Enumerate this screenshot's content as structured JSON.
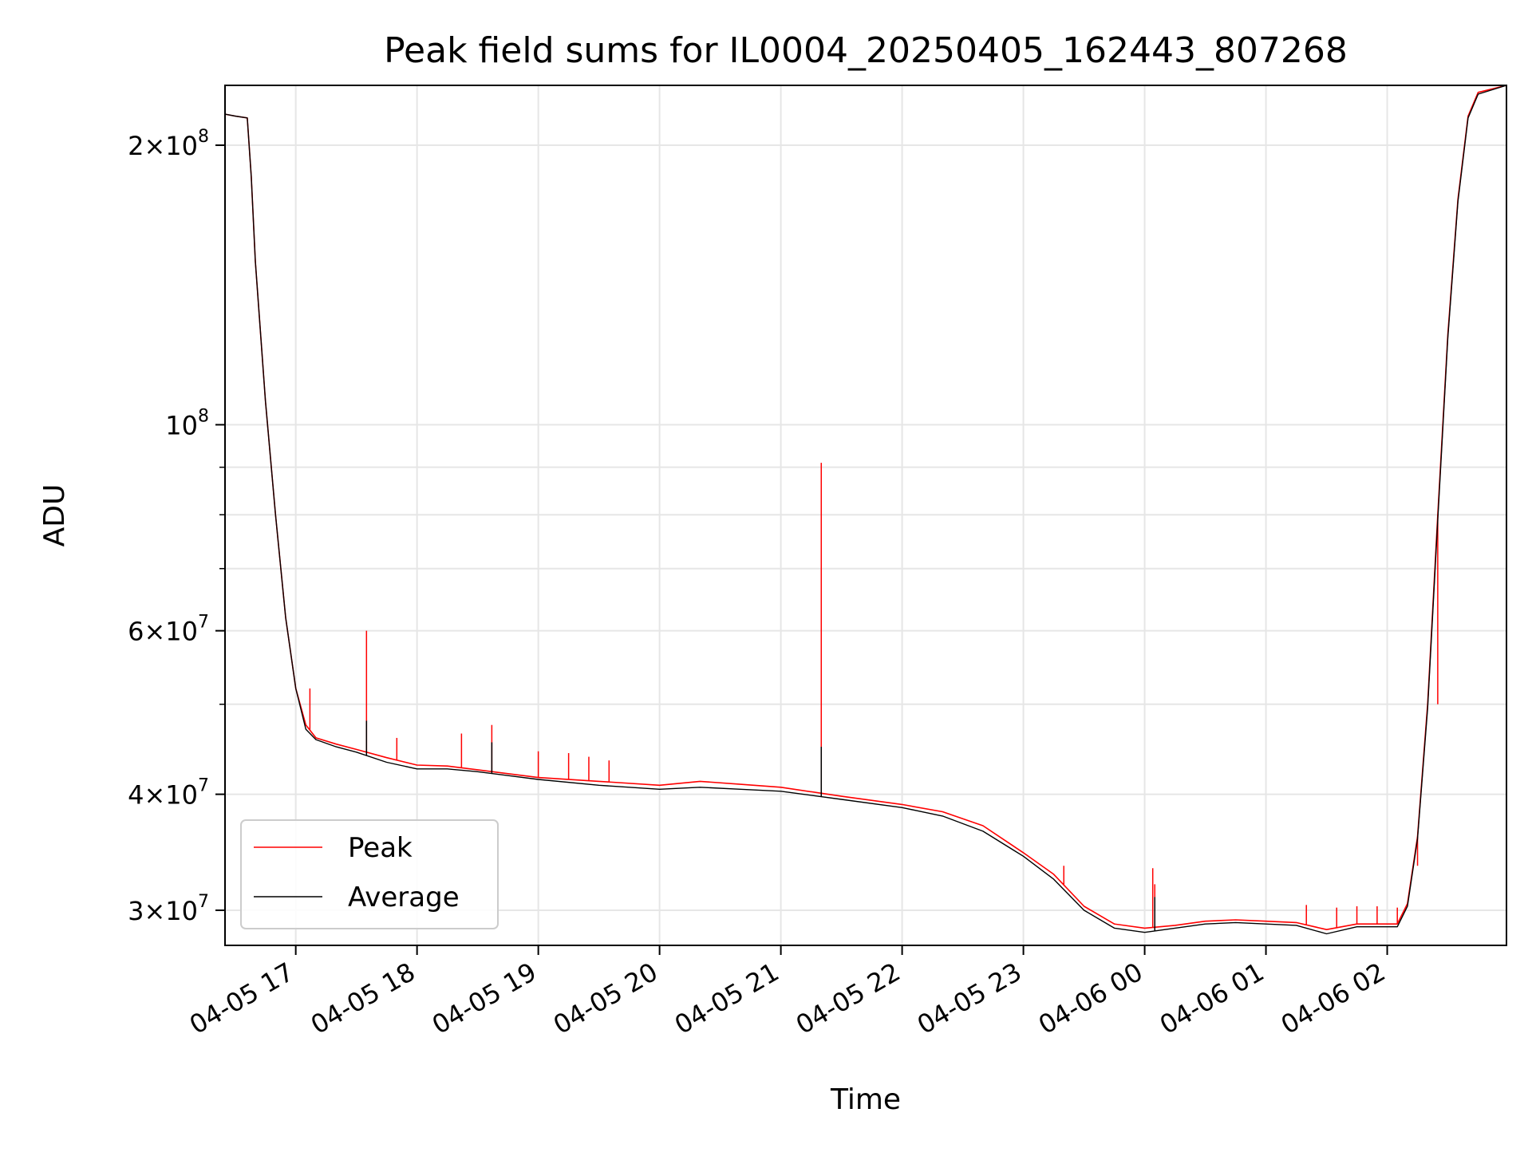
{
  "chart_data": {
    "type": "line",
    "title": "Peak field sums for IL0004_20250405_162443_807268",
    "xlabel": "Time",
    "ylabel": "ADU",
    "yscale": "log",
    "ylim": [
      27500000,
      232000000
    ],
    "xlim": [
      "04-05 16:25",
      "04-06 02:59"
    ],
    "grid": true,
    "legend_position": "lower left",
    "x_ticks": [
      "04-05 17",
      "04-05 18",
      "04-05 19",
      "04-05 20",
      "04-05 21",
      "04-05 22",
      "04-05 23",
      "04-06 00",
      "04-06 01",
      "04-06 02"
    ],
    "y_ticks": [
      {
        "value": 30000000,
        "mantissa": "3",
        "exp": "7",
        "kind": "mant"
      },
      {
        "value": 40000000,
        "mantissa": "4",
        "exp": "7",
        "kind": "mant"
      },
      {
        "value": 60000000,
        "mantissa": "6",
        "exp": "7",
        "kind": "mant"
      },
      {
        "value": 100000000,
        "mantissa": "",
        "exp": "8",
        "kind": "pow"
      },
      {
        "value": 200000000,
        "mantissa": "2",
        "exp": "8",
        "kind": "mant"
      }
    ],
    "series": [
      {
        "name": "Peak",
        "color": "#ff0000",
        "points": [
          [
            "04-05 16:25",
            216000000
          ],
          [
            "04-05 16:30",
            215000000
          ],
          [
            "04-05 16:36",
            214000000
          ],
          [
            "04-05 16:38",
            185000000
          ],
          [
            "04-05 16:40",
            150000000
          ],
          [
            "04-05 16:45",
            106000000
          ],
          [
            "04-05 16:50",
            80000000
          ],
          [
            "04-05 16:55",
            62000000
          ],
          [
            "04-05 17:00",
            52000000
          ],
          [
            "04-05 17:05",
            47500000
          ],
          [
            "04-05 17:10",
            46000000
          ],
          [
            "04-05 17:20",
            45300000
          ],
          [
            "04-05 17:30",
            44700000
          ],
          [
            "04-05 17:45",
            43800000
          ],
          [
            "04-05 18:00",
            43000000
          ],
          [
            "04-05 18:15",
            42900000
          ],
          [
            "04-05 18:30",
            42500000
          ],
          [
            "04-05 19:00",
            41700000
          ],
          [
            "04-05 19:30",
            41300000
          ],
          [
            "04-05 20:00",
            40900000
          ],
          [
            "04-05 20:20",
            41300000
          ],
          [
            "04-05 20:40",
            41000000
          ],
          [
            "04-05 21:00",
            40700000
          ],
          [
            "04-05 21:30",
            39800000
          ],
          [
            "04-05 22:00",
            39000000
          ],
          [
            "04-05 22:20",
            38300000
          ],
          [
            "04-05 22:40",
            37000000
          ],
          [
            "04-05 23:00",
            34600000
          ],
          [
            "04-05 23:15",
            32800000
          ],
          [
            "04-05 23:30",
            30300000
          ],
          [
            "04-05 23:45",
            29000000
          ],
          [
            "04-06 00:00",
            28700000
          ],
          [
            "04-06 00:15",
            28900000
          ],
          [
            "04-06 00:30",
            29200000
          ],
          [
            "04-06 00:45",
            29300000
          ],
          [
            "04-06 01:00",
            29200000
          ],
          [
            "04-06 01:15",
            29100000
          ],
          [
            "04-06 01:30",
            28600000
          ],
          [
            "04-06 01:45",
            29000000
          ],
          [
            "04-06 02:05",
            29000000
          ],
          [
            "04-06 02:10",
            30500000
          ],
          [
            "04-06 02:15",
            36000000
          ],
          [
            "04-06 02:20",
            50000000
          ],
          [
            "04-06 02:25",
            80000000
          ],
          [
            "04-06 02:30",
            125000000
          ],
          [
            "04-06 02:35",
            175000000
          ],
          [
            "04-06 02:40",
            215000000
          ],
          [
            "04-06 02:45",
            228000000
          ],
          [
            "04-06 02:59",
            232000000
          ]
        ],
        "spikes": [
          [
            "04-05 17:07",
            52000000
          ],
          [
            "04-05 17:35",
            60000000
          ],
          [
            "04-05 17:50",
            46000000
          ],
          [
            "04-05 18:22",
            46500000
          ],
          [
            "04-05 18:37",
            47500000
          ],
          [
            "04-05 19:00",
            44500000
          ],
          [
            "04-05 19:15",
            44300000
          ],
          [
            "04-05 19:25",
            43900000
          ],
          [
            "04-05 19:35",
            43500000
          ],
          [
            "04-05 21:20",
            91000000
          ],
          [
            "04-05 23:20",
            33500000
          ],
          [
            "04-06 00:04",
            33300000
          ],
          [
            "04-06 00:05",
            32000000
          ],
          [
            "04-06 01:20",
            30400000
          ],
          [
            "04-06 01:35",
            30200000
          ],
          [
            "04-06 01:45",
            30300000
          ],
          [
            "04-06 01:55",
            30300000
          ],
          [
            "04-06 02:05",
            30200000
          ],
          [
            "04-06 02:15",
            33500000
          ],
          [
            "04-06 02:25",
            50000000
          ]
        ]
      },
      {
        "name": "Average",
        "color": "#000000",
        "points": [
          [
            "04-05 16:25",
            216000000
          ],
          [
            "04-05 16:30",
            215000000
          ],
          [
            "04-05 16:36",
            214000000
          ],
          [
            "04-05 16:38",
            185000000
          ],
          [
            "04-05 16:40",
            150000000
          ],
          [
            "04-05 16:45",
            106000000
          ],
          [
            "04-05 16:50",
            80000000
          ],
          [
            "04-05 16:55",
            62000000
          ],
          [
            "04-05 17:00",
            52000000
          ],
          [
            "04-05 17:05",
            47000000
          ],
          [
            "04-05 17:10",
            45800000
          ],
          [
            "04-05 17:20",
            45000000
          ],
          [
            "04-05 17:30",
            44400000
          ],
          [
            "04-05 17:45",
            43300000
          ],
          [
            "04-05 18:00",
            42600000
          ],
          [
            "04-05 18:15",
            42600000
          ],
          [
            "04-05 18:30",
            42300000
          ],
          [
            "04-05 19:00",
            41500000
          ],
          [
            "04-05 19:30",
            40900000
          ],
          [
            "04-05 20:00",
            40500000
          ],
          [
            "04-05 20:20",
            40700000
          ],
          [
            "04-05 20:40",
            40500000
          ],
          [
            "04-05 21:00",
            40300000
          ],
          [
            "04-05 21:30",
            39500000
          ],
          [
            "04-05 22:00",
            38700000
          ],
          [
            "04-05 22:20",
            37900000
          ],
          [
            "04-05 22:40",
            36500000
          ],
          [
            "04-05 23:00",
            34300000
          ],
          [
            "04-05 23:15",
            32400000
          ],
          [
            "04-05 23:30",
            30000000
          ],
          [
            "04-05 23:45",
            28700000
          ],
          [
            "04-06 00:00",
            28400000
          ],
          [
            "04-06 00:15",
            28700000
          ],
          [
            "04-06 00:30",
            29000000
          ],
          [
            "04-06 00:45",
            29100000
          ],
          [
            "04-06 01:00",
            29000000
          ],
          [
            "04-06 01:15",
            28900000
          ],
          [
            "04-06 01:30",
            28300000
          ],
          [
            "04-06 01:45",
            28800000
          ],
          [
            "04-06 02:05",
            28800000
          ],
          [
            "04-06 02:10",
            30300000
          ],
          [
            "04-06 02:15",
            35800000
          ],
          [
            "04-06 02:20",
            49500000
          ],
          [
            "04-06 02:25",
            79000000
          ],
          [
            "04-06 02:30",
            124000000
          ],
          [
            "04-06 02:35",
            174000000
          ],
          [
            "04-06 02:40",
            214000000
          ],
          [
            "04-06 02:45",
            227000000
          ],
          [
            "04-06 02:59",
            232000000
          ]
        ],
        "spikes": [
          [
            "04-05 17:35",
            48000000
          ],
          [
            "04-05 18:37",
            45500000
          ],
          [
            "04-05 21:20",
            45000000
          ],
          [
            "04-06 00:05",
            31000000
          ]
        ]
      }
    ]
  }
}
